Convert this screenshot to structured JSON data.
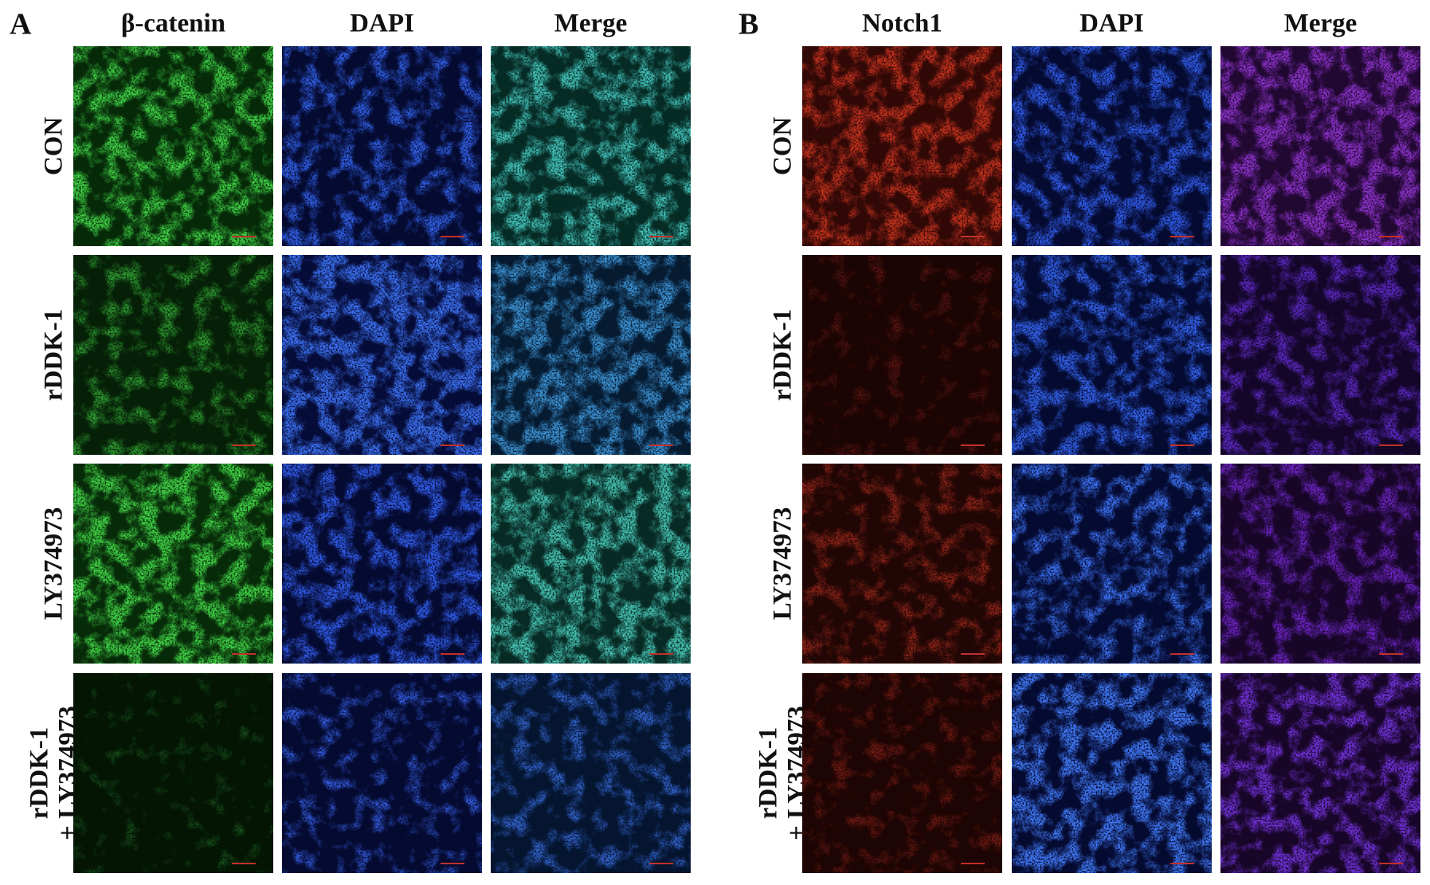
{
  "panels": [
    {
      "label": "A",
      "columns": [
        "β-catenin",
        "DAPI",
        "Merge"
      ],
      "rows": [
        [
          "CON"
        ],
        [
          "rDDK-1"
        ],
        [
          "LY374973"
        ],
        [
          "rDDK-1",
          "+ LY374973"
        ]
      ]
    },
    {
      "label": "B",
      "columns": [
        "Notch1",
        "DAPI",
        "Merge"
      ],
      "rows": [
        [
          "CON"
        ],
        [
          "rDDK-1"
        ],
        [
          "LY374973"
        ],
        [
          "rDDK-1",
          "+ LY374973"
        ]
      ]
    }
  ]
}
